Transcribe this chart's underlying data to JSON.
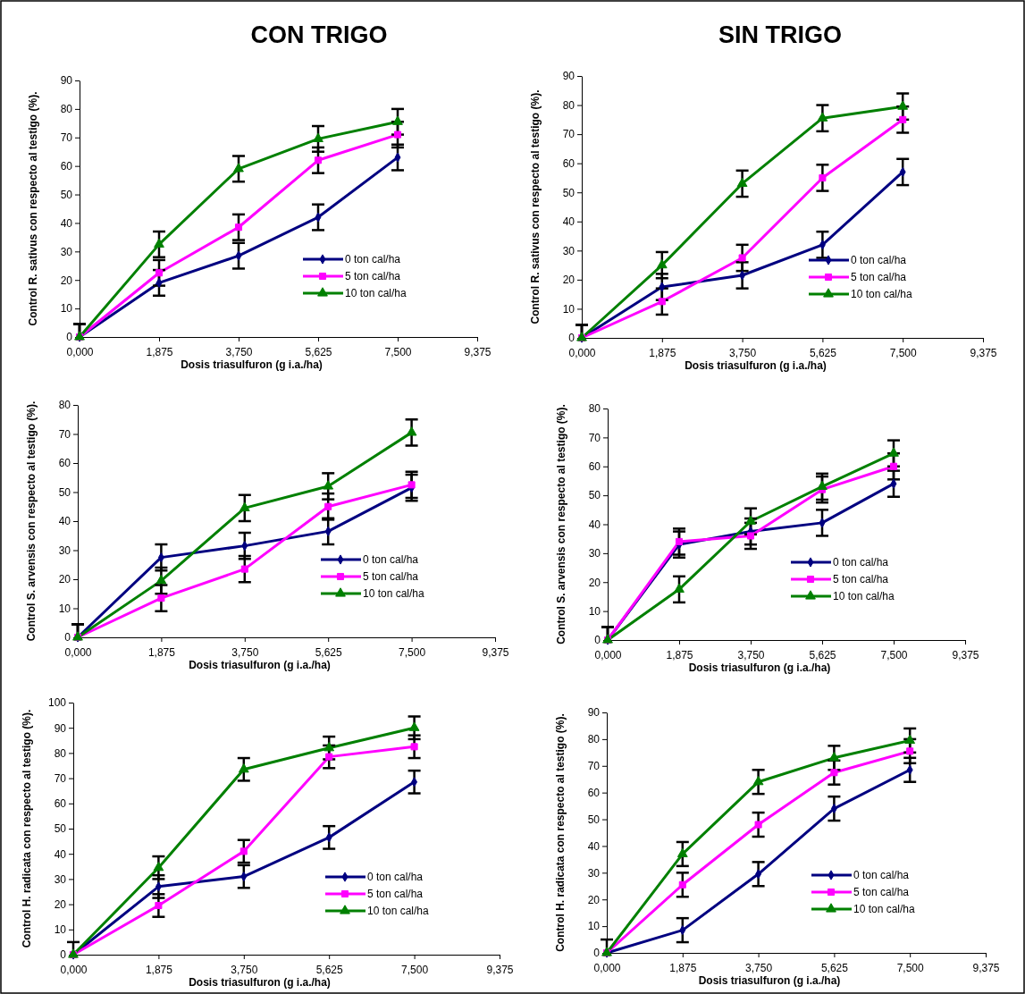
{
  "chart_data": [
    {
      "type": "line",
      "title": "CON TRIGO",
      "xlabel": "Dosis triasulfuron (g i.a./ha)",
      "ylabel": "Control R. sativus con respecto al testigo (%).",
      "x": [
        0,
        1.875,
        3.75,
        5.625,
        7.5
      ],
      "xlim": [
        0,
        9.375
      ],
      "xticks": [
        {
          "value": 0,
          "label": "0,000"
        },
        {
          "value": 1.875,
          "label": "1,875"
        },
        {
          "value": 3.75,
          "label": "3,750"
        },
        {
          "value": 5.625,
          "label": "5,625"
        },
        {
          "value": 7.5,
          "label": "7,500"
        },
        {
          "value": 9.375,
          "label": "9,375"
        }
      ],
      "ylim": [
        0,
        90
      ],
      "yticks": [
        0,
        10,
        20,
        30,
        40,
        50,
        60,
        70,
        80,
        90
      ],
      "legend": "bottom right",
      "grid": false,
      "series": [
        {
          "name": "0 ton cal/ha",
          "color": "#000080",
          "marker": "diamond",
          "values": [
            0,
            19,
            28.5,
            42,
            63
          ],
          "errors": [
            [
              0,
              4.5
            ],
            4.5,
            4.5,
            4.5,
            4.5
          ]
        },
        {
          "name": "5 ton cal/ha",
          "color": "#ff00ff",
          "marker": "square",
          "values": [
            0,
            22.5,
            38.5,
            62,
            71
          ],
          "errors": [
            [
              0,
              4.5
            ],
            4.5,
            4.5,
            4.5,
            4.5
          ]
        },
        {
          "name": "10 ton cal/ha",
          "color": "#008000",
          "marker": "triangle",
          "values": [
            0,
            32.5,
            59,
            69.5,
            75.5
          ],
          "errors": [
            [
              0,
              4.5
            ],
            4.5,
            4.5,
            4.5,
            4.5
          ]
        }
      ]
    },
    {
      "type": "line",
      "title": "SIN TRIGO",
      "xlabel": "Dosis triasulfuron (g i.a./ha)",
      "ylabel": "Control R. sativus con respecto al testigo (%).",
      "x": [
        0,
        1.875,
        3.75,
        5.625,
        7.5
      ],
      "xlim": [
        0,
        9.375
      ],
      "xticks": [
        {
          "value": 0,
          "label": "0,000"
        },
        {
          "value": 1.875,
          "label": "1,875"
        },
        {
          "value": 3.75,
          "label": "3,750"
        },
        {
          "value": 5.625,
          "label": "5,625"
        },
        {
          "value": 7.5,
          "label": "7,500"
        },
        {
          "value": 9.375,
          "label": "9,375"
        }
      ],
      "ylim": [
        0,
        90
      ],
      "yticks": [
        0,
        10,
        20,
        30,
        40,
        50,
        60,
        70,
        80,
        90
      ],
      "legend": "bottom right",
      "grid": false,
      "series": [
        {
          "name": "0 ton cal/ha",
          "color": "#000080",
          "marker": "diamond",
          "values": [
            0,
            17.5,
            21.5,
            32,
            57
          ],
          "errors": [
            [
              0,
              4.5
            ],
            4.5,
            4.5,
            4.5,
            4.5
          ]
        },
        {
          "name": "5 ton cal/ha",
          "color": "#ff00ff",
          "marker": "square",
          "values": [
            0,
            12.5,
            27.5,
            55,
            75
          ],
          "errors": [
            [
              0,
              4.5
            ],
            4.5,
            4.5,
            4.5,
            4.5
          ]
        },
        {
          "name": "10 ton cal/ha",
          "color": "#008000",
          "marker": "triangle",
          "values": [
            0,
            25,
            53,
            75.5,
            79.5
          ],
          "errors": [
            [
              0,
              4.5
            ],
            4.5,
            4.5,
            4.5,
            4.5
          ]
        }
      ]
    },
    {
      "type": "line",
      "xlabel": "Dosis triasulfuron (g i.a./ha)",
      "ylabel": "Control S. arvensis con respecto al testigo (%).",
      "x": [
        0,
        1.875,
        3.75,
        5.625,
        7.5
      ],
      "xlim": [
        0,
        9.375
      ],
      "xticks": [
        {
          "value": 0,
          "label": "0,000"
        },
        {
          "value": 1.875,
          "label": "1,875"
        },
        {
          "value": 3.75,
          "label": "3,750"
        },
        {
          "value": 5.625,
          "label": "5,625"
        },
        {
          "value": 7.5,
          "label": "7,500"
        },
        {
          "value": 9.375,
          "label": "9,375"
        }
      ],
      "ylim": [
        0,
        80
      ],
      "yticks": [
        0,
        10,
        20,
        30,
        40,
        50,
        60,
        70,
        80
      ],
      "legend": "bottom right",
      "grid": false,
      "series": [
        {
          "name": "0 ton cal/ha",
          "color": "#000080",
          "marker": "diamond",
          "values": [
            0,
            27.5,
            31.5,
            36.5,
            51.5
          ],
          "errors": [
            [
              0,
              4.5
            ],
            4.5,
            4.5,
            4.5,
            4.5
          ]
        },
        {
          "name": "5 ton cal/ha",
          "color": "#ff00ff",
          "marker": "square",
          "values": [
            0,
            13.5,
            23.5,
            45,
            52.5
          ],
          "errors": [
            [
              0,
              4.5
            ],
            4.5,
            4.5,
            4.5,
            4.5
          ]
        },
        {
          "name": "10 ton cal/ha",
          "color": "#008000",
          "marker": "triangle",
          "values": [
            0,
            19.5,
            44.5,
            52,
            70.5
          ],
          "errors": [
            [
              0,
              4.5
            ],
            4.5,
            4.5,
            4.5,
            4.5
          ]
        }
      ]
    },
    {
      "type": "line",
      "xlabel": "Dosis triasulfuron (g i.a./ha)",
      "ylabel": "Control S. arvensis con respecto al testigo (%).",
      "x": [
        0,
        1.875,
        3.75,
        5.625,
        7.5
      ],
      "xlim": [
        0,
        9.375
      ],
      "xticks": [
        {
          "value": 0,
          "label": "0,000"
        },
        {
          "value": 1.875,
          "label": "1,875"
        },
        {
          "value": 3.75,
          "label": "3,750"
        },
        {
          "value": 5.625,
          "label": "5,625"
        },
        {
          "value": 7.5,
          "label": "7,500"
        },
        {
          "value": 9.375,
          "label": "9,375"
        }
      ],
      "ylim": [
        0,
        80
      ],
      "yticks": [
        0,
        10,
        20,
        30,
        40,
        50,
        60,
        70,
        80
      ],
      "legend": "bottom right",
      "grid": false,
      "series": [
        {
          "name": "0 ton cal/ha",
          "color": "#000080",
          "marker": "diamond",
          "values": [
            0,
            33,
            37.5,
            40.5,
            54
          ],
          "errors": [
            [
              0,
              4.5
            ],
            4.5,
            4.5,
            4.5,
            4.5
          ]
        },
        {
          "name": "5 ton cal/ha",
          "color": "#ff00ff",
          "marker": "square",
          "values": [
            0,
            34,
            36,
            52,
            60
          ],
          "errors": [
            [
              0,
              4.5
            ],
            4.5,
            4.5,
            4.5,
            4.5
          ]
        },
        {
          "name": "10 ton cal/ha",
          "color": "#008000",
          "marker": "triangle",
          "values": [
            0,
            17.5,
            41,
            53,
            64.5
          ],
          "errors": [
            [
              0,
              4.5
            ],
            4.5,
            4.5,
            4.5,
            4.5
          ]
        }
      ]
    },
    {
      "type": "line",
      "xlabel": "Dosis triasulfuron (g i.a./ha)",
      "ylabel": "Control H. radicata con respecto al testigo (%).",
      "x": [
        0,
        1.875,
        3.75,
        5.625,
        7.5
      ],
      "xlim": [
        0,
        9.375
      ],
      "xticks": [
        {
          "value": 0,
          "label": "0,000"
        },
        {
          "value": 1.875,
          "label": "1,875"
        },
        {
          "value": 3.75,
          "label": "3,750"
        },
        {
          "value": 5.625,
          "label": "5,625"
        },
        {
          "value": 7.5,
          "label": "7,500"
        },
        {
          "value": 9.375,
          "label": "9,375"
        }
      ],
      "ylim": [
        0,
        100
      ],
      "yticks": [
        0,
        10,
        20,
        30,
        40,
        50,
        60,
        70,
        80,
        90,
        100
      ],
      "legend": "bottom right",
      "grid": false,
      "series": [
        {
          "name": "0 ton cal/ha",
          "color": "#000080",
          "marker": "diamond",
          "values": [
            0,
            27,
            31,
            46.5,
            68.5
          ],
          "errors": [
            [
              0,
              5
            ],
            4.5,
            4.5,
            4.5,
            4.5
          ]
        },
        {
          "name": "5 ton cal/ha",
          "color": "#ff00ff",
          "marker": "square",
          "values": [
            0,
            19.5,
            41,
            78.5,
            82.5
          ],
          "errors": [
            null,
            4.5,
            4.5,
            4.5,
            4.5
          ]
        },
        {
          "name": "10 ton cal/ha",
          "color": "#008000",
          "marker": "triangle",
          "values": [
            0,
            34.5,
            73.5,
            82,
            90
          ],
          "errors": [
            null,
            4.5,
            4.5,
            4.5,
            4.5
          ]
        }
      ]
    },
    {
      "type": "line",
      "xlabel": "Dosis triasulfuron (g i.a./ha)",
      "ylabel": "Control H. radicata con respecto al testigo (%).",
      "x": [
        0,
        1.875,
        3.75,
        5.625,
        7.5
      ],
      "xlim": [
        0,
        9.375
      ],
      "xticks": [
        {
          "value": 0,
          "label": "0,000"
        },
        {
          "value": 1.875,
          "label": "1,875"
        },
        {
          "value": 3.75,
          "label": "3,750"
        },
        {
          "value": 5.625,
          "label": "5,625"
        },
        {
          "value": 7.5,
          "label": "7,500"
        },
        {
          "value": 9.375,
          "label": "9,375"
        }
      ],
      "ylim": [
        0,
        90
      ],
      "yticks": [
        0,
        10,
        20,
        30,
        40,
        50,
        60,
        70,
        80,
        90
      ],
      "legend": "bottom right",
      "grid": false,
      "series": [
        {
          "name": "0 ton cal/ha",
          "color": "#000080",
          "marker": "diamond",
          "values": [
            0,
            8.5,
            29.5,
            54,
            68.5
          ],
          "errors": [
            [
              0,
              5
            ],
            4.5,
            4.5,
            4.5,
            4.5
          ]
        },
        {
          "name": "5 ton cal/ha",
          "color": "#ff00ff",
          "marker": "square",
          "values": [
            0,
            25.5,
            48,
            67.5,
            75.5
          ],
          "errors": [
            null,
            4.5,
            4.5,
            4.5,
            4.5
          ]
        },
        {
          "name": "10 ton cal/ha",
          "color": "#008000",
          "marker": "triangle",
          "values": [
            0,
            37,
            64,
            73,
            79.5
          ],
          "errors": [
            null,
            4.5,
            4.5,
            4.5,
            4.5
          ]
        }
      ]
    }
  ]
}
